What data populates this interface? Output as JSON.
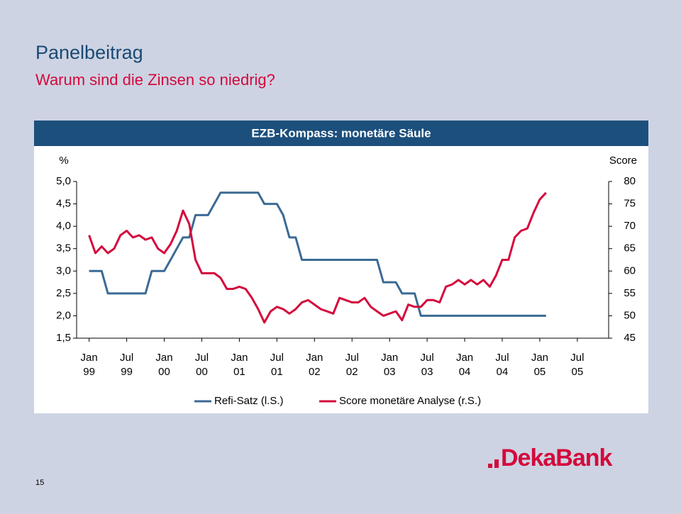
{
  "header": {
    "title": "Panelbeitrag",
    "subtitle": "Warum sind die Zinsen so niedrig?"
  },
  "chart_data": {
    "type": "line",
    "title": "EZB-Kompass: monetäre Säule",
    "y_label": "%",
    "y2_label": "Score",
    "x": [
      "1999-01",
      "1999-02",
      "1999-03",
      "1999-04",
      "1999-05",
      "1999-06",
      "1999-07",
      "1999-08",
      "1999-09",
      "1999-10",
      "1999-11",
      "1999-12",
      "2000-01",
      "2000-02",
      "2000-03",
      "2000-04",
      "2000-05",
      "2000-06",
      "2000-07",
      "2000-08",
      "2000-09",
      "2000-10",
      "2000-11",
      "2000-12",
      "2001-01",
      "2001-02",
      "2001-03",
      "2001-04",
      "2001-05",
      "2001-06",
      "2001-07",
      "2001-08",
      "2001-09",
      "2001-10",
      "2001-11",
      "2001-12",
      "2002-01",
      "2002-02",
      "2002-03",
      "2002-04",
      "2002-05",
      "2002-06",
      "2002-07",
      "2002-08",
      "2002-09",
      "2002-10",
      "2002-11",
      "2002-12",
      "2003-01",
      "2003-02",
      "2003-03",
      "2003-04",
      "2003-05",
      "2003-06",
      "2003-07",
      "2003-08",
      "2003-09",
      "2003-10",
      "2003-11",
      "2003-12",
      "2004-01",
      "2004-02",
      "2004-03",
      "2004-04",
      "2004-05",
      "2004-06",
      "2004-07",
      "2004-08",
      "2004-09",
      "2004-10",
      "2004-11",
      "2004-12",
      "2005-01",
      "2005-02"
    ],
    "series": [
      {
        "name": "Refi-Satz (l.S.)",
        "color": "#3b6a94",
        "axis": "y",
        "values": [
          3,
          3,
          3,
          2.5,
          2.5,
          2.5,
          2.5,
          2.5,
          2.5,
          2.5,
          3,
          3,
          3,
          3.25,
          3.5,
          3.75,
          3.75,
          4.25,
          4.25,
          4.25,
          4.5,
          4.75,
          4.75,
          4.75,
          4.75,
          4.75,
          4.75,
          4.75,
          4.5,
          4.5,
          4.5,
          4.25,
          3.75,
          3.75,
          3.25,
          3.25,
          3.25,
          3.25,
          3.25,
          3.25,
          3.25,
          3.25,
          3.25,
          3.25,
          3.25,
          3.25,
          3.25,
          2.75,
          2.75,
          2.75,
          2.5,
          2.5,
          2.5,
          2,
          2,
          2,
          2,
          2,
          2,
          2,
          2,
          2,
          2,
          2,
          2,
          2,
          2,
          2,
          2,
          2,
          2,
          2,
          2,
          2
        ]
      },
      {
        "name": "Score monetäre Analyse (r.S.)",
        "color": "#d4093c",
        "axis": "y2",
        "values": [
          68,
          64,
          65.5,
          64,
          65,
          68,
          69,
          67.5,
          68,
          67,
          67.5,
          65,
          64,
          66,
          69,
          73.5,
          70.5,
          62.5,
          59.5,
          59.5,
          59.5,
          58.5,
          56,
          56,
          56.5,
          56,
          54,
          51.5,
          48.5,
          51,
          52,
          51.5,
          50.5,
          51.5,
          53,
          53.5,
          52.5,
          51.5,
          51,
          50.5,
          54,
          53.5,
          53,
          53,
          54,
          52,
          51,
          50,
          50.5,
          51,
          49,
          52.5,
          52,
          52,
          53.5,
          53.5,
          53,
          56.5,
          57,
          58,
          57,
          58,
          57,
          58,
          56.5,
          59,
          62.5,
          62.5,
          67.5,
          69,
          69.5,
          73,
          76,
          77.5
        ]
      }
    ],
    "xlim": [
      "1998-11",
      "2005-12"
    ],
    "xticks": [
      {
        "value": "1999-01",
        "label": "Jan 99"
      },
      {
        "value": "1999-07",
        "label": "Jul 99"
      },
      {
        "value": "2000-01",
        "label": "Jan 00"
      },
      {
        "value": "2000-07",
        "label": "Jul 00"
      },
      {
        "value": "2001-01",
        "label": "Jan 01"
      },
      {
        "value": "2001-07",
        "label": "Jul 01"
      },
      {
        "value": "2002-01",
        "label": "Jan 02"
      },
      {
        "value": "2002-07",
        "label": "Jul 02"
      },
      {
        "value": "2003-01",
        "label": "Jan 03"
      },
      {
        "value": "2003-07",
        "label": "Jul 03"
      },
      {
        "value": "2004-01",
        "label": "Jan 04"
      },
      {
        "value": "2004-07",
        "label": "Jul 04"
      },
      {
        "value": "2005-01",
        "label": "Jan 05"
      },
      {
        "value": "2005-07",
        "label": "Jul 05"
      }
    ],
    "ylim": [
      1.5,
      5
    ],
    "yticks": [
      {
        "value": 1.5,
        "label": "1,5"
      },
      {
        "value": 2,
        "label": "2,0"
      },
      {
        "value": 2.5,
        "label": "2,5"
      },
      {
        "value": 3,
        "label": "3,0"
      },
      {
        "value": 3.5,
        "label": "3,5"
      },
      {
        "value": 4,
        "label": "4,0"
      },
      {
        "value": 4.5,
        "label": "4,5"
      },
      {
        "value": 5,
        "label": "5,0"
      }
    ],
    "y2lim": [
      45,
      80
    ],
    "y2ticks": [
      45,
      50,
      55,
      60,
      65,
      70,
      75,
      80
    ],
    "grid": false,
    "legend": "bottom"
  },
  "footer": {
    "page_number": "15",
    "logo": "DekaBank"
  }
}
